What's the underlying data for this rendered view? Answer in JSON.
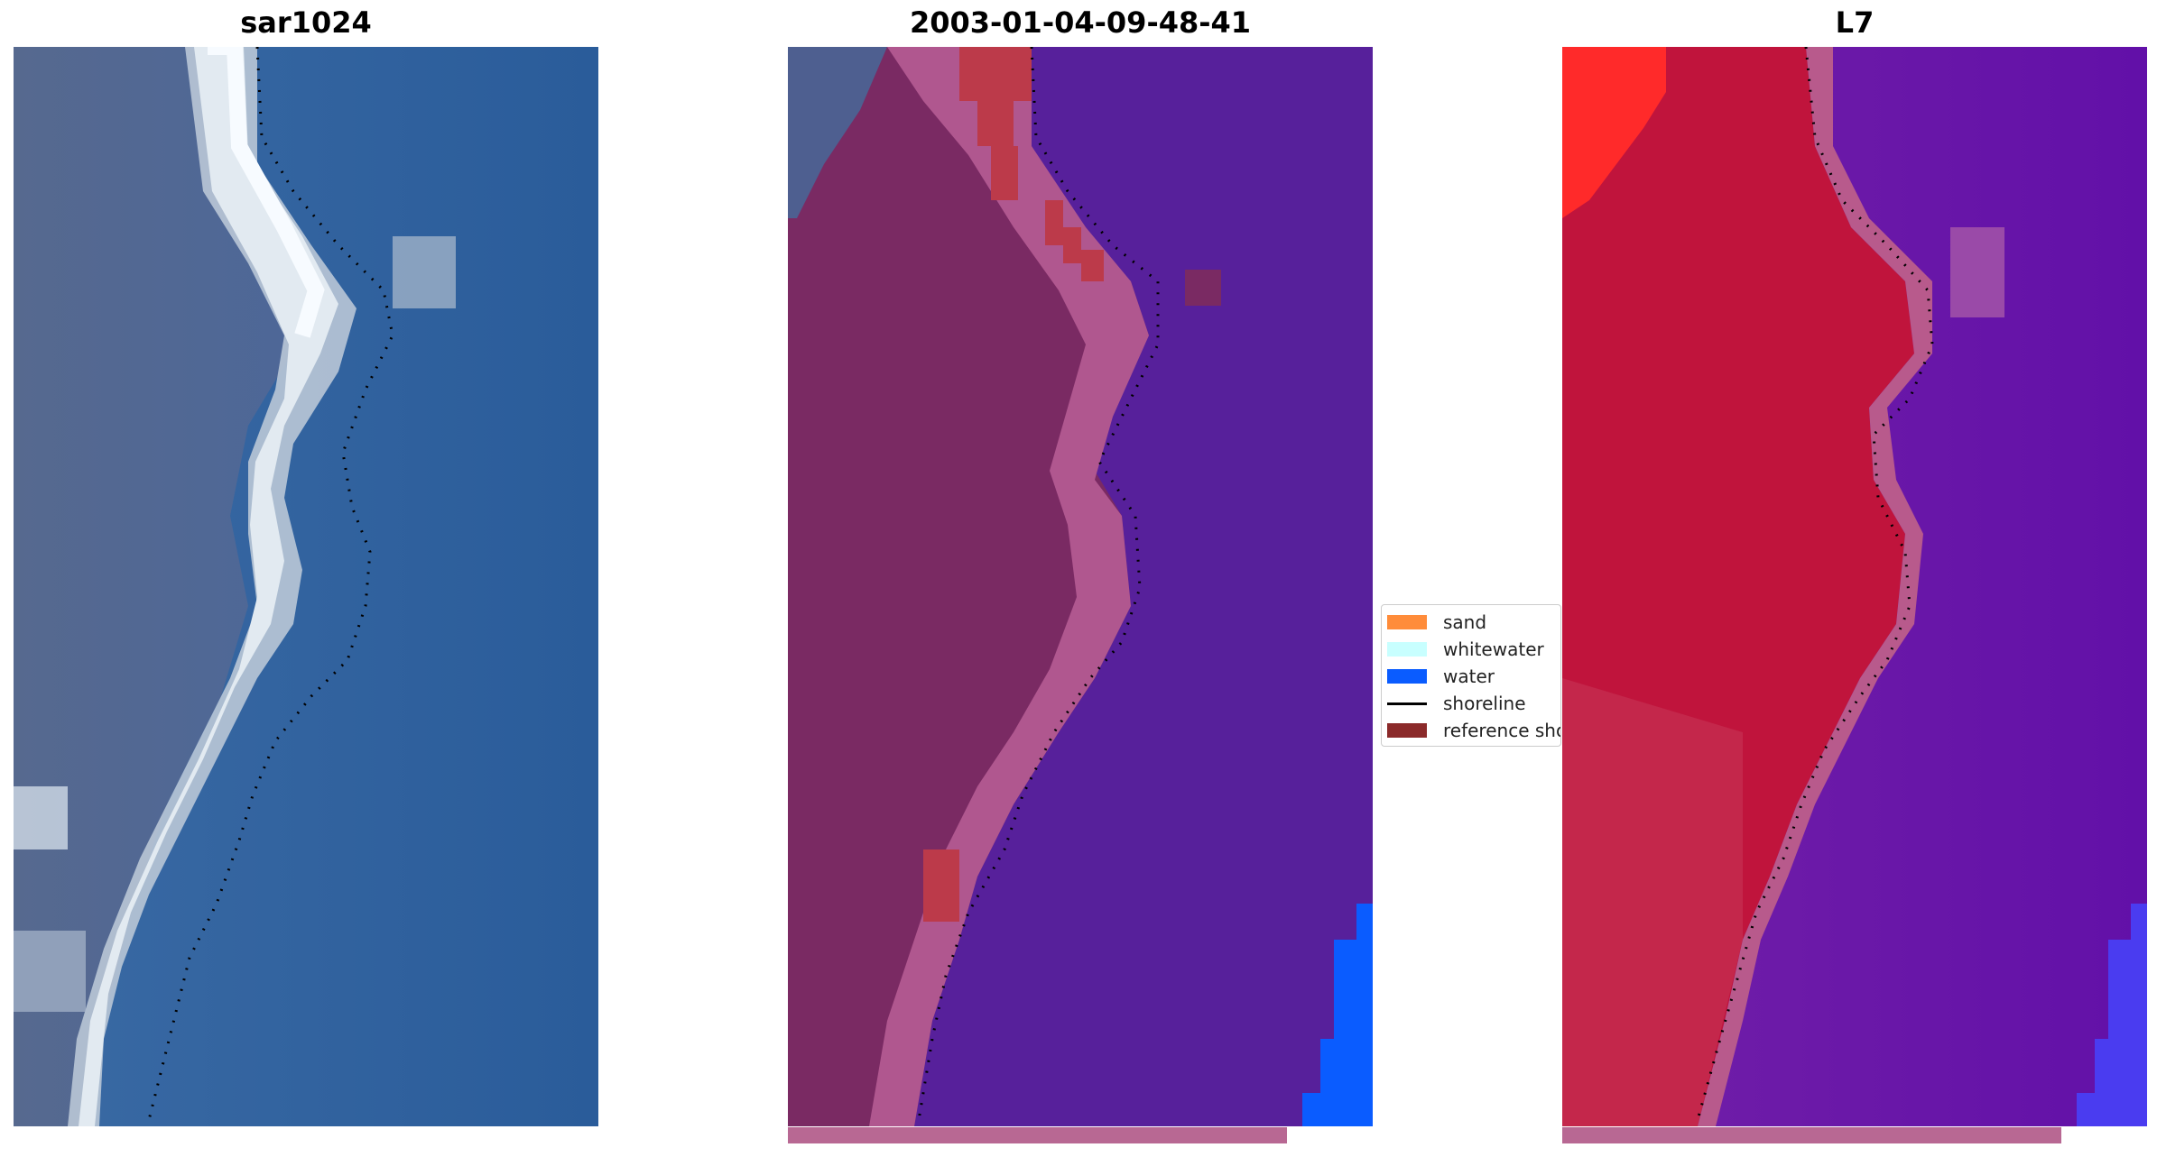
{
  "panels": [
    {
      "title": "sar1024"
    },
    {
      "title": "2003-01-04-09-48-41"
    },
    {
      "title": "L7"
    }
  ],
  "legend": {
    "items": [
      {
        "label": "sand",
        "color": "#ff8c3a",
        "kind": "patch"
      },
      {
        "label": "whitewater",
        "color": "#c8ffff",
        "kind": "patch"
      },
      {
        "label": "water",
        "color": "#0a5cff",
        "kind": "patch"
      },
      {
        "label": "shoreline",
        "color": "#000000",
        "kind": "line"
      },
      {
        "label": "reference shoreline",
        "color": "#8b2a2a",
        "kind": "patch"
      }
    ]
  },
  "colors": {
    "rgb_water": "#2e63a0",
    "rgb_land": "#4f6593",
    "rgb_surf": "#e4ecf2",
    "classified_water": "#57209b",
    "classified_land": "#7a2a63",
    "classified_band": "#b0578f",
    "classified_red_patch": "#bc3a4a",
    "classified_water_blue": "#0a5cff",
    "l7_land": "#c0143c",
    "l7_water": "#6a14a8",
    "l7_band": "#b85a8c",
    "l7_bright_red": "#ff2a2a",
    "l7_blue_corner": "#4a3cf0",
    "footer_bar": "#b86893"
  }
}
